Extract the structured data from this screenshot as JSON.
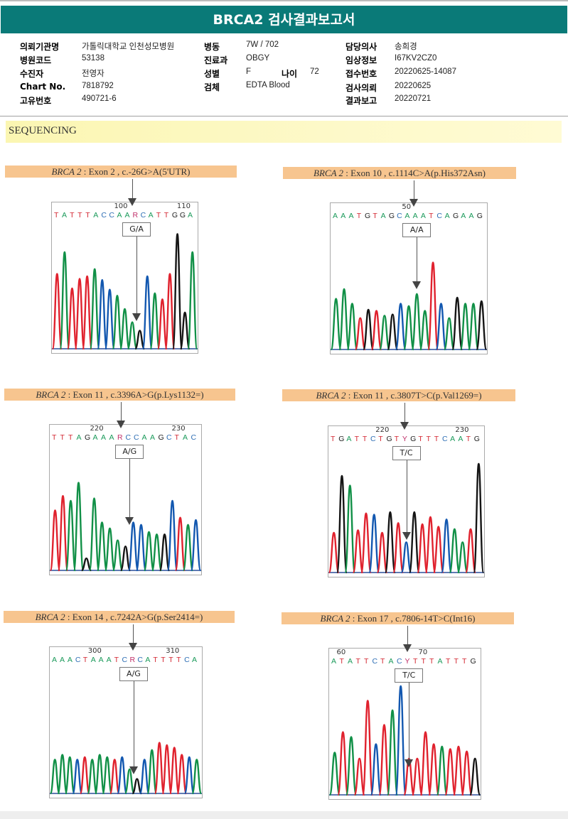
{
  "report": {
    "title": "BRCA2 검사결과보고서",
    "section_title": "SEQUENCING",
    "fields": {
      "col1": [
        {
          "label": "의뢰기관명",
          "value": "가톨릭대학교 인천성모병원"
        },
        {
          "label": "병원코드",
          "value": "53138"
        },
        {
          "label": "수진자",
          "value": "전영자"
        },
        {
          "label": "Chart No.",
          "value": "7818792"
        },
        {
          "label": "고유번호",
          "value": "490721-6"
        }
      ],
      "col2": [
        {
          "label": "병동",
          "value": "7W / 702"
        },
        {
          "label": "진료과",
          "value": "OBGY"
        },
        {
          "label": "성별",
          "value": "F"
        },
        {
          "label": "검체",
          "value": "EDTA Blood"
        }
      ],
      "age": {
        "label": "나이",
        "value": "72"
      },
      "col3": [
        {
          "label": "담당의사",
          "value": "송희경"
        },
        {
          "label": "임상정보",
          "value": "I67KV2CZ0"
        },
        {
          "label": "접수번호",
          "value": "20220625-14087"
        },
        {
          "label": "검사의뢰",
          "value": "20220625"
        },
        {
          "label": "결과보고",
          "value": "20220721"
        }
      ]
    }
  },
  "base_colors": {
    "A": "#1a9a5a",
    "C": "#2f6fb5",
    "G": "#222222",
    "T": "#d42a35",
    "R": "#c0306a",
    "Y": "#c0306a"
  },
  "trace_colors": {
    "A": "#119047",
    "C": "#1358b0",
    "G": "#151515",
    "T": "#e0222e"
  },
  "panels": [
    {
      "gene": "BRCA 2",
      "variant": " : Exon 2 , c.-26G>A(5'UTR)",
      "positions": [
        {
          "label": "100",
          "index": 8
        },
        {
          "label": "110",
          "index": 16
        }
      ],
      "sequence": "TATTTACCAARCATTGGA",
      "genotype": "G/A",
      "mark_index": 10,
      "peaks": [
        {
          "b": "T",
          "h": 0.62
        },
        {
          "b": "A",
          "h": 0.8
        },
        {
          "b": "T",
          "h": 0.5
        },
        {
          "b": "T",
          "h": 0.58
        },
        {
          "b": "T",
          "h": 0.6
        },
        {
          "b": "A",
          "h": 0.66
        },
        {
          "b": "C",
          "h": 0.57
        },
        {
          "b": "C",
          "h": 0.49
        },
        {
          "b": "A",
          "h": 0.44
        },
        {
          "b": "A",
          "h": 0.33
        },
        {
          "b": "A",
          "h": 0.22
        },
        {
          "b": "G",
          "h": 0.15
        },
        {
          "b": "C",
          "h": 0.6
        },
        {
          "b": "A",
          "h": 0.46
        },
        {
          "b": "T",
          "h": 0.41
        },
        {
          "b": "T",
          "h": 0.62
        },
        {
          "b": "G",
          "h": 0.95
        },
        {
          "b": "G",
          "h": 0.3
        },
        {
          "b": "A",
          "h": 0.8
        }
      ]
    },
    {
      "gene": "BRCA 2",
      "variant": " : Exon 10 , c.1114C>A(p.His372Asn)",
      "positions": [
        {
          "label": "50",
          "index": 9
        }
      ],
      "sequence": "AAATGTAGCAAATCAGAAG",
      "genotype": "A/A",
      "mark_index": 10,
      "peaks": [
        {
          "b": "A",
          "h": 0.42
        },
        {
          "b": "A",
          "h": 0.5
        },
        {
          "b": "A",
          "h": 0.38
        },
        {
          "b": "T",
          "h": 0.26
        },
        {
          "b": "G",
          "h": 0.33
        },
        {
          "b": "T",
          "h": 0.32
        },
        {
          "b": "A",
          "h": 0.28
        },
        {
          "b": "G",
          "h": 0.29
        },
        {
          "b": "C",
          "h": 0.38
        },
        {
          "b": "A",
          "h": 0.36
        },
        {
          "b": "A",
          "h": 0.46
        },
        {
          "b": "A",
          "h": 0.32
        },
        {
          "b": "T",
          "h": 0.72
        },
        {
          "b": "C",
          "h": 0.38
        },
        {
          "b": "A",
          "h": 0.26
        },
        {
          "b": "G",
          "h": 0.43
        },
        {
          "b": "A",
          "h": 0.38
        },
        {
          "b": "A",
          "h": 0.38
        },
        {
          "b": "G",
          "h": 0.4
        }
      ]
    },
    {
      "gene": "BRCA 2",
      "variant": " : Exon 11 , c.3396A>G(p.Lys1132=)",
      "positions": [
        {
          "label": "220",
          "index": 5
        },
        {
          "label": "230",
          "index": 15
        }
      ],
      "sequence": "TTTAGAAARCCAAGCTAC",
      "genotype": "A/G",
      "mark_index": 9,
      "peaks": [
        {
          "b": "T",
          "h": 0.5
        },
        {
          "b": "T",
          "h": 0.62
        },
        {
          "b": "A",
          "h": 0.58
        },
        {
          "b": "A",
          "h": 0.73
        },
        {
          "b": "G",
          "h": 0.1
        },
        {
          "b": "A",
          "h": 0.6
        },
        {
          "b": "A",
          "h": 0.4
        },
        {
          "b": "A",
          "h": 0.35
        },
        {
          "b": "A",
          "h": 0.25
        },
        {
          "b": "G",
          "h": 0.2
        },
        {
          "b": "C",
          "h": 0.4
        },
        {
          "b": "C",
          "h": 0.38
        },
        {
          "b": "A",
          "h": 0.32
        },
        {
          "b": "A",
          "h": 0.3
        },
        {
          "b": "G",
          "h": 0.3
        },
        {
          "b": "C",
          "h": 0.58
        },
        {
          "b": "T",
          "h": 0.44
        },
        {
          "b": "A",
          "h": 0.38
        },
        {
          "b": "C",
          "h": 0.42
        }
      ]
    },
    {
      "gene": "BRCA 2",
      "variant": " : Exon 11 , c.3807T>C(p.Val1269=)",
      "positions": [
        {
          "label": "220",
          "index": 6
        },
        {
          "label": "230",
          "index": 16
        }
      ],
      "sequence": "TGATTCTGTYGTTTCAATG",
      "genotype": "T/C",
      "mark_index": 9,
      "peaks": [
        {
          "b": "T",
          "h": 0.33
        },
        {
          "b": "G",
          "h": 0.8
        },
        {
          "b": "A",
          "h": 0.72
        },
        {
          "b": "T",
          "h": 0.35
        },
        {
          "b": "T",
          "h": 0.49
        },
        {
          "b": "C",
          "h": 0.48
        },
        {
          "b": "T",
          "h": 0.33
        },
        {
          "b": "G",
          "h": 0.5
        },
        {
          "b": "T",
          "h": 0.41
        },
        {
          "b": "C",
          "h": 0.25
        },
        {
          "b": "G",
          "h": 0.5
        },
        {
          "b": "T",
          "h": 0.4
        },
        {
          "b": "T",
          "h": 0.46
        },
        {
          "b": "T",
          "h": 0.38
        },
        {
          "b": "C",
          "h": 0.44
        },
        {
          "b": "A",
          "h": 0.36
        },
        {
          "b": "A",
          "h": 0.25
        },
        {
          "b": "T",
          "h": 0.36
        },
        {
          "b": "G",
          "h": 0.9
        }
      ]
    },
    {
      "gene": "BRCA 2",
      "variant": " : Exon 14 , c.7242A>G(p.Ser2414=)",
      "positions": [
        {
          "label": "300",
          "index": 5
        },
        {
          "label": "310",
          "index": 15
        }
      ],
      "sequence": "AAACTAAATCRCATTTTCA",
      "genotype": "A/G",
      "mark_index": 10,
      "peaks": [
        {
          "b": "A",
          "h": 0.28
        },
        {
          "b": "A",
          "h": 0.32
        },
        {
          "b": "A",
          "h": 0.3
        },
        {
          "b": "C",
          "h": 0.28
        },
        {
          "b": "T",
          "h": 0.3
        },
        {
          "b": "A",
          "h": 0.28
        },
        {
          "b": "A",
          "h": 0.32
        },
        {
          "b": "A",
          "h": 0.3
        },
        {
          "b": "T",
          "h": 0.28
        },
        {
          "b": "C",
          "h": 0.3
        },
        {
          "b": "A",
          "h": 0.2
        },
        {
          "b": "G",
          "h": 0.12
        },
        {
          "b": "C",
          "h": 0.28
        },
        {
          "b": "A",
          "h": 0.36
        },
        {
          "b": "T",
          "h": 0.42
        },
        {
          "b": "T",
          "h": 0.4
        },
        {
          "b": "T",
          "h": 0.38
        },
        {
          "b": "T",
          "h": 0.32
        },
        {
          "b": "C",
          "h": 0.3
        },
        {
          "b": "A",
          "h": 0.28
        }
      ]
    },
    {
      "gene": "BRCA 2",
      "variant": " : Exon 17 , c.7806-14T>C(Int16)",
      "positions": [
        {
          "label": "60",
          "index": 1
        },
        {
          "label": "70",
          "index": 11
        }
      ],
      "sequence": "ATATTCTACYTTTATTTG",
      "genotype": "T/C",
      "mark_index": 9,
      "peaks": [
        {
          "b": "A",
          "h": 0.35
        },
        {
          "b": "T",
          "h": 0.52
        },
        {
          "b": "A",
          "h": 0.48
        },
        {
          "b": "T",
          "h": 0.3
        },
        {
          "b": "T",
          "h": 0.78
        },
        {
          "b": "C",
          "h": 0.42
        },
        {
          "b": "T",
          "h": 0.58
        },
        {
          "b": "A",
          "h": 0.7
        },
        {
          "b": "C",
          "h": 0.9
        },
        {
          "b": "T",
          "h": 0.3
        },
        {
          "b": "T",
          "h": 0.3
        },
        {
          "b": "T",
          "h": 0.52
        },
        {
          "b": "T",
          "h": 0.42
        },
        {
          "b": "A",
          "h": 0.4
        },
        {
          "b": "T",
          "h": 0.38
        },
        {
          "b": "T",
          "h": 0.4
        },
        {
          "b": "T",
          "h": 0.36
        },
        {
          "b": "G",
          "h": 0.3
        }
      ]
    }
  ]
}
